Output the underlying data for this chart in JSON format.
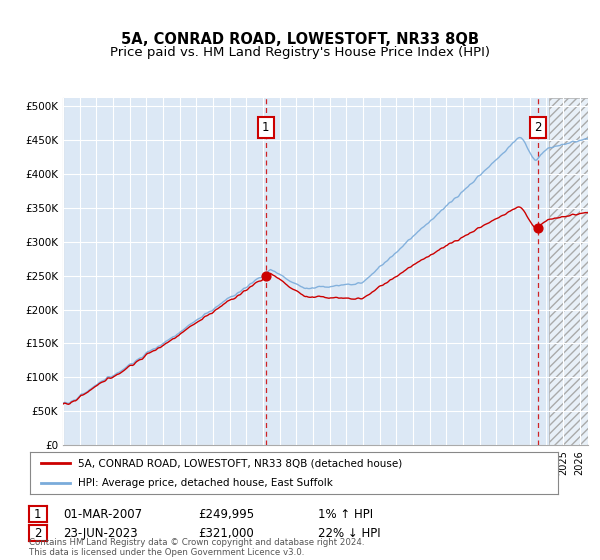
{
  "title": "5A, CONRAD ROAD, LOWESTOFT, NR33 8QB",
  "subtitle": "Price paid vs. HM Land Registry's House Price Index (HPI)",
  "ylabel_ticks": [
    "£0",
    "£50K",
    "£100K",
    "£150K",
    "£200K",
    "£250K",
    "£300K",
    "£350K",
    "£400K",
    "£450K",
    "£500K"
  ],
  "ytick_values": [
    0,
    50000,
    100000,
    150000,
    200000,
    250000,
    300000,
    350000,
    400000,
    450000,
    500000
  ],
  "ylim": [
    0,
    512000
  ],
  "xlim_start": 1995.0,
  "xlim_end": 2026.5,
  "background_color": "#dce8f5",
  "grid_color": "#ffffff",
  "hpi_color": "#7aabda",
  "price_color": "#cc0000",
  "marker1_x": 2007.17,
  "marker2_x": 2023.48,
  "marker1_price": 249995,
  "marker2_price": 321000,
  "legend_label1": "5A, CONRAD ROAD, LOWESTOFT, NR33 8QB (detached house)",
  "legend_label2": "HPI: Average price, detached house, East Suffolk",
  "table_row1": [
    "1",
    "01-MAR-2007",
    "£249,995",
    "1% ↑ HPI"
  ],
  "table_row2": [
    "2",
    "23-JUN-2023",
    "£321,000",
    "22% ↓ HPI"
  ],
  "footer": "Contains HM Land Registry data © Crown copyright and database right 2024.\nThis data is licensed under the Open Government Licence v3.0.",
  "title_fontsize": 10.5,
  "subtitle_fontsize": 9.5,
  "future_start": 2024.17
}
